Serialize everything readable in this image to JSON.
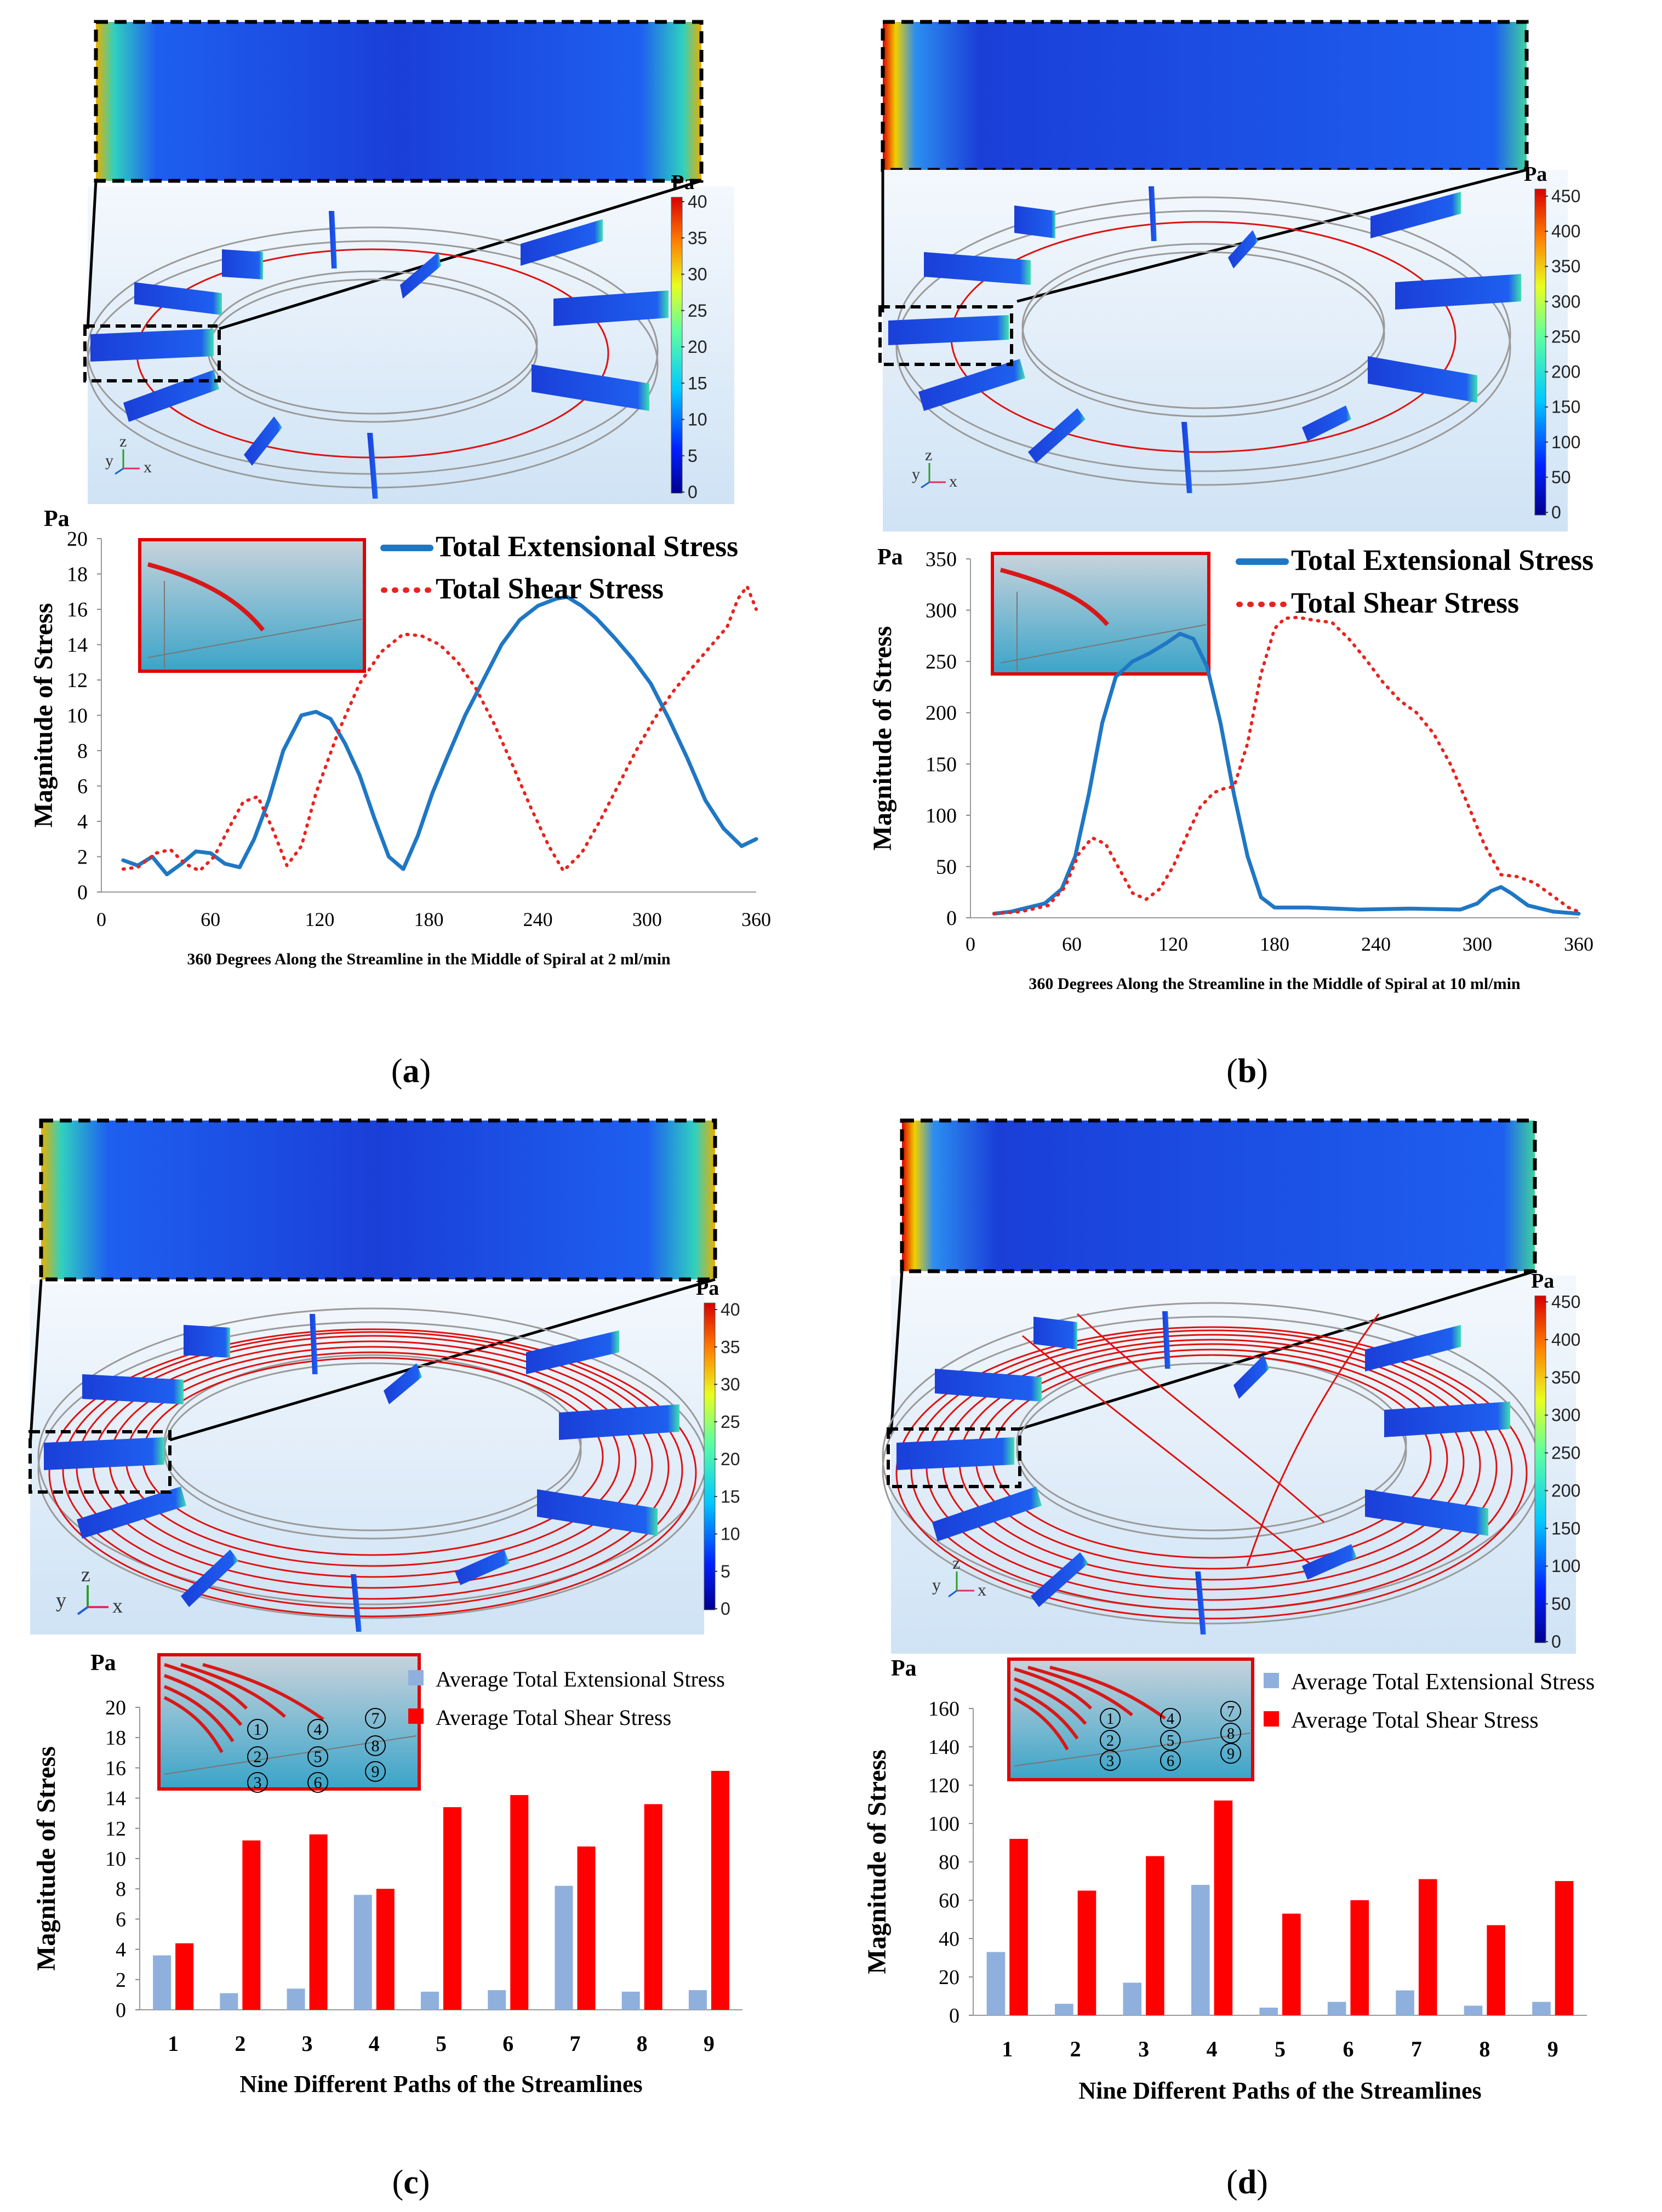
{
  "panels": [
    {
      "id": "a",
      "caption_open": "(",
      "caption_letter": "a",
      "caption_close": ")",
      "scale_unit": "Pa",
      "scale_ticks": [
        "40",
        "35",
        "30",
        "25",
        "20",
        "15",
        "10",
        "5",
        "0"
      ],
      "axes_labels": {
        "y": "y",
        "z": "z",
        "x": "x"
      }
    },
    {
      "id": "b",
      "caption_open": "(",
      "caption_letter": "b",
      "caption_close": ")",
      "scale_unit": "Pa",
      "scale_ticks": [
        "450",
        "400",
        "350",
        "300",
        "250",
        "200",
        "150",
        "100",
        "50",
        "0"
      ],
      "axes_labels": {
        "y": "y",
        "z": "z",
        "x": "x"
      }
    },
    {
      "id": "c",
      "caption_open": "(",
      "caption_letter": "c",
      "caption_close": ")",
      "scale_unit": "Pa",
      "scale_ticks": [
        "40",
        "35",
        "30",
        "25",
        "20",
        "15",
        "10",
        "5",
        "0"
      ],
      "axes_labels": {
        "y": "y",
        "z": "z",
        "x": "x"
      }
    },
    {
      "id": "d",
      "caption_open": "(",
      "caption_letter": "d",
      "caption_close": ")",
      "scale_unit": "Pa",
      "scale_ticks": [
        "450",
        "400",
        "350",
        "300",
        "250",
        "200",
        "150",
        "100",
        "50",
        "0"
      ],
      "axes_labels": {
        "y": "y",
        "z": "z",
        "x": "x"
      }
    }
  ],
  "chart_data": [
    {
      "panel": "a",
      "type": "line",
      "unit": "Pa",
      "ylabel": "Magnitude of Stress",
      "xlabel": "360 Degrees Along the Streamline in the Middle of Spiral at 2 ml/min",
      "xlim": [
        0,
        360
      ],
      "ylim": [
        0,
        20
      ],
      "xticks": [
        "0",
        "60",
        "120",
        "180",
        "240",
        "300",
        "360"
      ],
      "yticks": [
        "0",
        "2",
        "4",
        "6",
        "8",
        "10",
        "12",
        "14",
        "16",
        "18",
        "20"
      ],
      "series": [
        {
          "name": "Total Extensional Stress",
          "color": "#1f77c4",
          "style": "solid",
          "x": [
            12,
            20,
            28,
            36,
            44,
            52,
            60,
            68,
            76,
            84,
            92,
            100,
            110,
            118,
            126,
            134,
            142,
            150,
            158,
            166,
            174,
            182,
            190,
            200,
            210,
            220,
            230,
            240,
            250,
            256,
            264,
            272,
            282,
            292,
            302,
            312,
            322,
            332,
            342,
            352,
            360
          ],
          "y": [
            1.8,
            1.5,
            2.0,
            1.0,
            1.6,
            2.3,
            2.2,
            1.6,
            1.4,
            3.0,
            5.2,
            8.0,
            10.0,
            10.2,
            9.8,
            8.4,
            6.6,
            4.2,
            2.0,
            1.3,
            3.2,
            5.6,
            7.6,
            10.0,
            12.0,
            14.0,
            15.4,
            16.2,
            16.6,
            16.7,
            16.2,
            15.5,
            14.4,
            13.2,
            11.8,
            9.8,
            7.6,
            5.2,
            3.6,
            2.6,
            3.0
          ]
        },
        {
          "name": "Total Shear Stress",
          "color": "#e8231f",
          "style": "dotted",
          "x": [
            12,
            20,
            30,
            38,
            46,
            54,
            62,
            70,
            78,
            86,
            94,
            102,
            110,
            118,
            130,
            142,
            154,
            166,
            176,
            186,
            196,
            206,
            216,
            226,
            236,
            246,
            254,
            264,
            274,
            284,
            294,
            304,
            314,
            324,
            334,
            344,
            350,
            355,
            360
          ],
          "y": [
            1.3,
            1.4,
            2.2,
            2.4,
            1.6,
            1.2,
            2.0,
            3.6,
            5.1,
            5.4,
            3.6,
            1.5,
            2.6,
            5.6,
            9.0,
            11.8,
            13.6,
            14.6,
            14.5,
            14.0,
            13.0,
            11.5,
            9.5,
            7.2,
            4.8,
            2.6,
            1.2,
            2.2,
            4.0,
            6.0,
            8.0,
            9.8,
            11.3,
            12.6,
            13.8,
            15.0,
            16.6,
            17.3,
            16.0
          ]
        }
      ]
    },
    {
      "panel": "b",
      "type": "line",
      "unit": "Pa",
      "ylabel": "Magnitude of Stress",
      "xlabel": "360 Degrees Along the Streamline in the Middle of Spiral at 10 ml/min",
      "xlim": [
        0,
        360
      ],
      "ylim": [
        0,
        350
      ],
      "xticks": [
        "0",
        "60",
        "120",
        "180",
        "240",
        "300",
        "360"
      ],
      "yticks": [
        "0",
        "50",
        "100",
        "150",
        "200",
        "250",
        "300",
        "350"
      ],
      "series": [
        {
          "name": "Total Extensional Stress",
          "color": "#1f77c4",
          "style": "solid",
          "x": [
            14,
            24,
            34,
            44,
            54,
            62,
            70,
            78,
            86,
            96,
            106,
            116,
            124,
            132,
            140,
            148,
            156,
            164,
            172,
            180,
            200,
            230,
            260,
            290,
            300,
            308,
            314,
            320,
            330,
            345,
            360
          ],
          "y": [
            4,
            6,
            10,
            14,
            28,
            60,
            120,
            190,
            235,
            250,
            258,
            268,
            277,
            272,
            245,
            190,
            120,
            60,
            20,
            10,
            10,
            8,
            9,
            8,
            14,
            26,
            30,
            24,
            12,
            6,
            4
          ]
        },
        {
          "name": "Total Shear Stress",
          "color": "#e8231f",
          "style": "dotted",
          "x": [
            14,
            30,
            46,
            56,
            64,
            72,
            80,
            88,
            96,
            104,
            112,
            120,
            128,
            136,
            144,
            150,
            156,
            164,
            172,
            180,
            186,
            194,
            204,
            214,
            224,
            234,
            244,
            254,
            264,
            274,
            284,
            294,
            304,
            314,
            324,
            334,
            344,
            354,
            360
          ],
          "y": [
            4,
            6,
            12,
            30,
            62,
            78,
            72,
            48,
            24,
            18,
            28,
            50,
            80,
            108,
            122,
            126,
            128,
            170,
            238,
            282,
            292,
            293,
            290,
            288,
            272,
            252,
            230,
            212,
            200,
            180,
            150,
            112,
            72,
            42,
            40,
            34,
            22,
            10,
            6
          ]
        }
      ]
    },
    {
      "panel": "c",
      "type": "bar",
      "unit": "Pa",
      "ylabel": "Magnitude of Stress",
      "xlabel": "Nine Different Paths of the Streamlines",
      "ylim": [
        0,
        20
      ],
      "yticks": [
        "0",
        "2",
        "4",
        "6",
        "8",
        "10",
        "12",
        "14",
        "16",
        "18",
        "20"
      ],
      "categories": [
        "1",
        "2",
        "3",
        "4",
        "5",
        "6",
        "7",
        "8",
        "9"
      ],
      "series": [
        {
          "name": "Average Total Extensional Stress",
          "color": "#8fb0dc",
          "values": [
            3.6,
            1.1,
            1.4,
            7.6,
            1.2,
            1.3,
            8.2,
            1.2,
            1.3
          ]
        },
        {
          "name": "Average Total Shear Stress",
          "color": "#ff0000",
          "values": [
            4.4,
            11.2,
            11.6,
            8.0,
            13.4,
            14.2,
            10.8,
            13.6,
            15.8
          ]
        }
      ]
    },
    {
      "panel": "d",
      "type": "bar",
      "unit": "Pa",
      "ylabel": "Magnitude of Stress",
      "xlabel": "Nine Different Paths of the Streamlines",
      "ylim": [
        0,
        160
      ],
      "yticks": [
        "0",
        "20",
        "40",
        "60",
        "80",
        "100",
        "120",
        "140",
        "160"
      ],
      "categories": [
        "1",
        "2",
        "3",
        "4",
        "5",
        "6",
        "7",
        "8",
        "9"
      ],
      "series": [
        {
          "name": "Average Total Extensional Stress",
          "color": "#8fb0dc",
          "values": [
            33,
            6,
            17,
            68,
            4,
            7,
            13,
            5,
            7
          ]
        },
        {
          "name": "Average Total Shear Stress",
          "color": "#ff0000",
          "values": [
            92,
            65,
            83,
            112,
            53,
            60,
            71,
            47,
            70
          ]
        }
      ]
    }
  ],
  "inset_labels": [
    "1",
    "2",
    "3",
    "4",
    "5",
    "6",
    "7",
    "8",
    "9"
  ]
}
